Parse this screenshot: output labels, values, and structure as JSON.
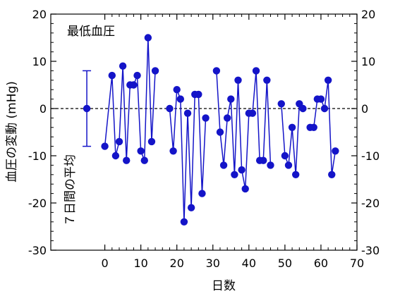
{
  "chart_data": {
    "type": "scatter",
    "title": "最低血圧",
    "xlabel": "日数",
    "ylabel": "血圧の変動 (mHg)",
    "xlim": [
      -15,
      70
    ],
    "ylim": [
      -30,
      20
    ],
    "xticks": [
      0,
      10,
      20,
      30,
      40,
      50,
      60,
      70
    ],
    "yticks": [
      -30,
      -20,
      -10,
      0,
      10,
      20
    ],
    "ytick_labels": [
      "-30",
      "-20",
      "-10",
      "0",
      "10",
      "20"
    ],
    "reference_line": {
      "y": 0,
      "style": "dashed"
    },
    "color": "#1414c8",
    "segments": [
      {
        "x": [
          0,
          2,
          3,
          4,
          5,
          6,
          7,
          8,
          9,
          10,
          11,
          12,
          13,
          14
        ],
        "y": [
          -8,
          7,
          -10,
          -7,
          9,
          -11,
          5,
          5,
          7,
          -9,
          -11,
          15,
          -7,
          8
        ]
      },
      {
        "x": [
          18,
          19,
          20,
          21,
          22,
          23,
          24,
          25,
          26,
          27,
          28
        ],
        "y": [
          0,
          -9,
          4,
          2,
          -24,
          -1,
          -21,
          3,
          3,
          -18,
          -2
        ]
      },
      {
        "x": [
          31,
          32,
          33,
          34,
          35,
          36,
          37,
          38,
          39,
          40,
          41,
          42,
          43,
          44,
          45,
          46
        ],
        "y": [
          8,
          -5,
          -12,
          -2,
          2,
          -14,
          6,
          -13,
          -17,
          -1,
          -1,
          8,
          -11,
          -11,
          6,
          -12
        ]
      },
      {
        "x": [
          49,
          50,
          51,
          52,
          53,
          54,
          55
        ],
        "y": [
          1,
          -10,
          -12,
          -4,
          -14,
          1,
          0
        ]
      },
      {
        "x": [
          57,
          58,
          59,
          60,
          61,
          62,
          63,
          64
        ],
        "y": [
          -4,
          -4,
          2,
          2,
          0,
          6,
          -14,
          -9
        ]
      }
    ],
    "mean": {
      "x": -5,
      "y": 0,
      "err_low": -8,
      "err_high": 8,
      "label": "７日間の平均"
    }
  }
}
